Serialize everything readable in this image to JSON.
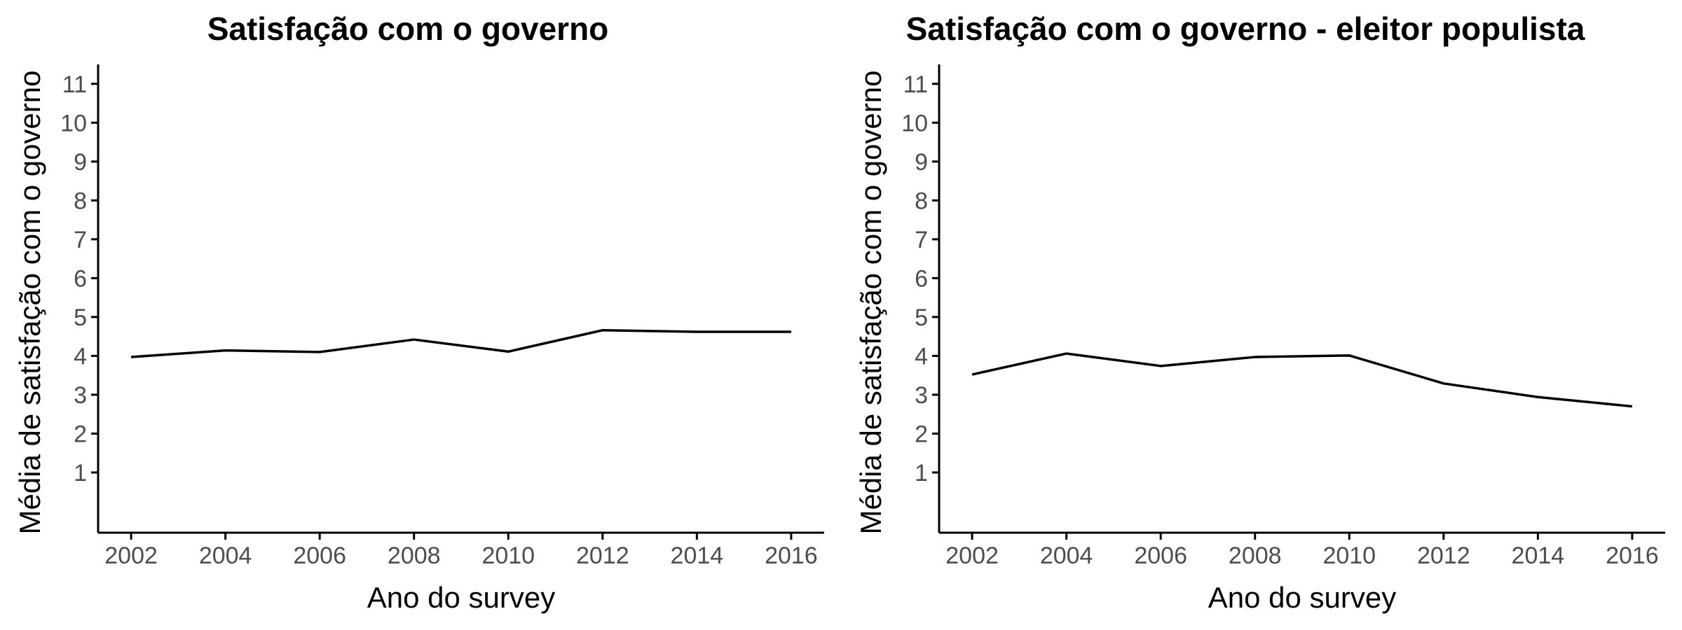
{
  "chart_data": [
    {
      "type": "line",
      "title": "Satisfação com o governo",
      "xlabel": "Ano do survey",
      "ylabel": "Média de satisfação com o governo",
      "x": [
        2002,
        2004,
        2006,
        2008,
        2010,
        2012,
        2014,
        2016
      ],
      "xticks": [
        "2002",
        "2004",
        "2006",
        "2008",
        "2010",
        "2012",
        "2014",
        "2016"
      ],
      "yticks": [
        "1",
        "2",
        "3",
        "4",
        "5",
        "6",
        "7",
        "8",
        "9",
        "10",
        "11"
      ],
      "xlim": [
        2001.3,
        2016.7
      ],
      "ylim": [
        -0.55,
        11.5
      ],
      "grid": false,
      "series": [
        {
          "values": [
            3.97,
            4.14,
            4.1,
            4.42,
            4.11,
            4.66,
            4.62,
            4.62
          ],
          "color": "#000000"
        }
      ]
    },
    {
      "type": "line",
      "title": "Satisfação com o governo - eleitor populista",
      "xlabel": "Ano do survey",
      "ylabel": "Média de satisfação com o governo",
      "x": [
        2002,
        2004,
        2006,
        2008,
        2010,
        2012,
        2014,
        2016
      ],
      "xticks": [
        "2002",
        "2004",
        "2006",
        "2008",
        "2010",
        "2012",
        "2014",
        "2016"
      ],
      "yticks": [
        "1",
        "2",
        "3",
        "4",
        "5",
        "6",
        "7",
        "8",
        "9",
        "10",
        "11"
      ],
      "xlim": [
        2001.3,
        2016.7
      ],
      "ylim": [
        -0.55,
        11.5
      ],
      "grid": false,
      "series": [
        {
          "values": [
            3.52,
            4.06,
            3.74,
            3.97,
            4.01,
            3.29,
            2.94,
            2.7
          ],
          "color": "#000000"
        }
      ]
    }
  ]
}
